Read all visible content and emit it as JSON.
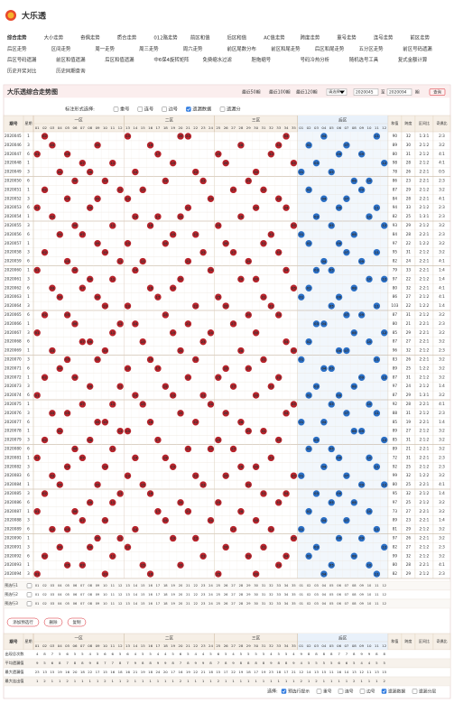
{
  "header": {
    "title": "大乐透"
  },
  "nav": [
    [
      "综合走势",
      "大小走势",
      "奇偶走势",
      "质合走势",
      "012路走势",
      "前区和值",
      "后区和值",
      "AC值走势",
      "跨度走势",
      "重号走势",
      "连号走势",
      "前区走势"
    ],
    [
      "后区走势",
      "区间走势",
      "周一走势",
      "周三走势",
      "周六走势",
      "前区尾数分布",
      "前区和尾走势",
      "后区和尾走势",
      "五分区走势",
      "前区号码遗漏"
    ],
    [
      "后区号码遗漏",
      "前区和值遗漏",
      "后区和值遗漏",
      "中6保4旋转矩阵",
      "免费缩水过滤",
      "胆拖缩号",
      "号码冷热分析",
      "随机选号工具",
      "复式金额计算"
    ],
    [
      "历史开奖对比",
      "历史同期查询"
    ]
  ],
  "panel": {
    "title": "大乐透综合走势图",
    "recent": [
      "最近50期",
      "最近100期",
      "最近120期"
    ],
    "select": "请选择",
    "from": "2020045",
    "to_label": "至",
    "to": "2020094",
    "period_label": "期",
    "query": "查询"
  },
  "options": {
    "label": "标注形式选择:",
    "items": [
      {
        "text": "重号",
        "checked": false
      },
      {
        "text": "连号",
        "checked": false
      },
      {
        "text": "边号",
        "checked": false
      },
      {
        "text": "遗漏数据",
        "checked": true
      },
      {
        "text": "遗漏分",
        "checked": false
      }
    ]
  },
  "table": {
    "columns": {
      "issue": "期号",
      "week": "星期",
      "zones": [
        "一区",
        "二区",
        "三区",
        "后区"
      ],
      "sum": "和值",
      "span": "跨度",
      "zone_ratio": "区间比",
      "odd_even": "奇偶比"
    },
    "front_numbers": [
      "01",
      "02",
      "03",
      "04",
      "05",
      "06",
      "07",
      "08",
      "09",
      "10",
      "11",
      "12",
      "13",
      "14",
      "15",
      "16",
      "17",
      "18",
      "19",
      "20",
      "21",
      "22",
      "23",
      "24",
      "25",
      "26",
      "27",
      "28",
      "29",
      "30",
      "31",
      "32",
      "33",
      "34",
      "35"
    ],
    "back_numbers": [
      "01",
      "02",
      "03",
      "04",
      "05",
      "06",
      "07",
      "08",
      "09",
      "10",
      "11",
      "12"
    ],
    "rows": [
      [
        2020045,
        1,
        [
          "02",
          "13",
          "20",
          "21",
          "34"
        ],
        [
          "04",
          "11"
        ],
        90,
        32,
        "1:3:1",
        "2:3"
      ],
      [
        2020046,
        3,
        [
          "03",
          "09",
          "16",
          "28",
          "33"
        ],
        [
          "02",
          "07"
        ],
        89,
        30,
        "2:1:2",
        "3:2"
      ],
      [
        2020047,
        6,
        [
          "01",
          "05",
          "17",
          "25",
          "32"
        ],
        [
          "06",
          "09"
        ],
        80,
        31,
        "2:1:2",
        "4:1"
      ],
      [
        2020048,
        1,
        [
          "07",
          "11",
          "19",
          "26",
          "35"
        ],
        [
          "03",
          "12"
        ],
        98,
        28,
        "2:1:2",
        "4:1"
      ],
      [
        2020049,
        3,
        [
          "04",
          "08",
          "14",
          "22",
          "30"
        ],
        [
          "01",
          "05"
        ],
        78,
        26,
        "2:2:1",
        "0:5"
      ],
      [
        2020050,
        6,
        [
          "06",
          "10",
          "18",
          "23",
          "29"
        ],
        [
          "08",
          "10"
        ],
        86,
        23,
        "2:2:1",
        "2:3"
      ],
      [
        2020051,
        1,
        [
          "02",
          "12",
          "15",
          "27",
          "31"
        ],
        [
          "02",
          "09"
        ],
        87,
        29,
        "2:1:2",
        "3:2"
      ],
      [
        2020052,
        3,
        [
          "05",
          "09",
          "13",
          "24",
          "33"
        ],
        [
          "04",
          "07"
        ],
        84,
        28,
        "2:2:1",
        "4:1"
      ],
      [
        2020053,
        6,
        [
          "01",
          "08",
          "21",
          "30",
          "34"
        ],
        [
          "06",
          "11"
        ],
        94,
        33,
        "2:1:2",
        "2:3"
      ],
      [
        2020054,
        1,
        [
          "03",
          "14",
          "17",
          "20",
          "28"
        ],
        [
          "03",
          "10"
        ],
        82,
        25,
        "1:3:1",
        "2:3"
      ],
      [
        2020055,
        3,
        [
          "06",
          "11",
          "16",
          "25",
          "35"
        ],
        [
          "05",
          "12"
        ],
        93,
        29,
        "2:1:2",
        "3:2"
      ],
      [
        2020056,
        6,
        [
          "04",
          "07",
          "19",
          "22",
          "32"
        ],
        [
          "01",
          "08"
        ],
        84,
        28,
        "2:2:1",
        "2:3"
      ],
      [
        2020057,
        1,
        [
          "09",
          "13",
          "18",
          "26",
          "31"
        ],
        [
          "02",
          "06"
        ],
        97,
        22,
        "1:2:2",
        "3:2"
      ],
      [
        2020058,
        3,
        [
          "02",
          "10",
          "23",
          "27",
          "33"
        ],
        [
          "07",
          "11"
        ],
        95,
        31,
        "2:1:2",
        "3:2"
      ],
      [
        2020059,
        6,
        [
          "05",
          "12",
          "15",
          "21",
          "29"
        ],
        [
          "04",
          "09"
        ],
        82,
        24,
        "2:2:1",
        "4:1"
      ],
      [
        2020060,
        1,
        [
          "01",
          "06",
          "14",
          "24",
          "34"
        ],
        [
          "03",
          "05"
        ],
        79,
        33,
        "2:2:1",
        "1:4"
      ],
      [
        2020061,
        3,
        [
          "08",
          "11",
          "20",
          "28",
          "30"
        ],
        [
          "10",
          "12"
        ],
        97,
        22,
        "2:1:2",
        "1:4"
      ],
      [
        2020062,
        6,
        [
          "03",
          "07",
          "16",
          "19",
          "35"
        ],
        [
          "02",
          "08"
        ],
        80,
        32,
        "2:2:1",
        "4:1"
      ],
      [
        2020063,
        1,
        [
          "04",
          "09",
          "17",
          "25",
          "31"
        ],
        [
          "01",
          "06"
        ],
        86,
        27,
        "2:1:2",
        "4:1"
      ],
      [
        2020064,
        3,
        [
          "10",
          "13",
          "22",
          "26",
          "32"
        ],
        [
          "05",
          "11"
        ],
        103,
        22,
        "1:2:2",
        "1:4"
      ],
      [
        2020065,
        6,
        [
          "02",
          "05",
          "18",
          "29",
          "33"
        ],
        [
          "07",
          "09"
        ],
        87,
        31,
        "2:1:2",
        "3:2"
      ],
      [
        2020066,
        1,
        [
          "06",
          "12",
          "14",
          "21",
          "27"
        ],
        [
          "03",
          "04"
        ],
        80,
        21,
        "2:2:1",
        "2:3"
      ],
      [
        2020067,
        3,
        [
          "01",
          "11",
          "19",
          "24",
          "30"
        ],
        [
          "08",
          "12"
        ],
        85,
        29,
        "2:2:1",
        "3:2"
      ],
      [
        2020068,
        6,
        [
          "07",
          "08",
          "15",
          "23",
          "34"
        ],
        [
          "02",
          "10"
        ],
        87,
        27,
        "2:2:1",
        "3:2"
      ],
      [
        2020069,
        1,
        [
          "03",
          "10",
          "20",
          "28",
          "35"
        ],
        [
          "06",
          "07"
        ],
        96,
        32,
        "2:1:2",
        "2:3"
      ],
      [
        2020070,
        3,
        [
          "05",
          "09",
          "16",
          "22",
          "31"
        ],
        [
          "01",
          "11"
        ],
        83,
        26,
        "2:2:1",
        "3:2"
      ],
      [
        2020071,
        6,
        [
          "04",
          "13",
          "17",
          "26",
          "29"
        ],
        [
          "04",
          "05"
        ],
        89,
        25,
        "1:2:2",
        "3:2"
      ],
      [
        2020072,
        1,
        [
          "02",
          "06",
          "21",
          "25",
          "33"
        ],
        [
          "09",
          "12"
        ],
        87,
        31,
        "2:1:2",
        "3:2"
      ],
      [
        2020073,
        3,
        [
          "08",
          "12",
          "18",
          "27",
          "32"
        ],
        [
          "03",
          "08"
        ],
        97,
        24,
        "2:1:2",
        "1:4"
      ],
      [
        2020074,
        6,
        [
          "01",
          "14",
          "19",
          "23",
          "30"
        ],
        [
          "02",
          "06"
        ],
        87,
        29,
        "1:3:1",
        "3:2"
      ],
      [
        2020075,
        1,
        [
          "07",
          "11",
          "15",
          "24",
          "35"
        ],
        [
          "05",
          "10"
        ],
        92,
        28,
        "2:2:1",
        "4:1"
      ],
      [
        2020076,
        3,
        [
          "03",
          "05",
          "20",
          "26",
          "34"
        ],
        [
          "07",
          "11"
        ],
        88,
        31,
        "2:1:2",
        "2:3"
      ],
      [
        2020077,
        6,
        [
          "09",
          "10",
          "16",
          "22",
          "28"
        ],
        [
          "01",
          "04"
        ],
        85,
        19,
        "2:2:1",
        "1:4"
      ],
      [
        2020078,
        1,
        [
          "04",
          "12",
          "13",
          "29",
          "31"
        ],
        [
          "08",
          "09"
        ],
        89,
        27,
        "2:1:2",
        "3:2"
      ],
      [
        2020079,
        3,
        [
          "02",
          "08",
          "17",
          "25",
          "33"
        ],
        [
          "03",
          "12"
        ],
        85,
        31,
        "2:1:2",
        "3:2"
      ],
      [
        2020080,
        6,
        [
          "06",
          "11",
          "21",
          "24",
          "27"
        ],
        [
          "02",
          "05"
        ],
        89,
        21,
        "2:2:1",
        "3:2"
      ],
      [
        2020081,
        1,
        [
          "01",
          "07",
          "14",
          "18",
          "32"
        ],
        [
          "06",
          "10"
        ],
        72,
        31,
        "2:2:1",
        "2:3"
      ],
      [
        2020082,
        3,
        [
          "05",
          "10",
          "19",
          "28",
          "30"
        ],
        [
          "04",
          "11"
        ],
        92,
        25,
        "2:1:2",
        "2:3"
      ],
      [
        2020083,
        6,
        [
          "03",
          "13",
          "22",
          "26",
          "35"
        ],
        [
          "01",
          "07"
        ],
        99,
        32,
        "1:2:2",
        "3:2"
      ],
      [
        2020084,
        1,
        [
          "04",
          "09",
          "15",
          "23",
          "29"
        ],
        [
          "09",
          "12"
        ],
        80,
        25,
        "2:2:1",
        "4:1"
      ],
      [
        2020085,
        3,
        [
          "02",
          "12",
          "16",
          "31",
          "34"
        ],
        [
          "03",
          "06"
        ],
        95,
        32,
        "2:1:2",
        "1:4"
      ],
      [
        2020086,
        6,
        [
          "08",
          "11",
          "20",
          "25",
          "33"
        ],
        [
          "05",
          "08"
        ],
        97,
        25,
        "2:1:2",
        "3:2"
      ],
      [
        2020087,
        1,
        [
          "01",
          "06",
          "17",
          "21",
          "28"
        ],
        [
          "02",
          "10"
        ],
        73,
        27,
        "2:2:1",
        "3:2"
      ],
      [
        2020088,
        3,
        [
          "07",
          "10",
          "18",
          "24",
          "30"
        ],
        [
          "04",
          "07"
        ],
        89,
        23,
        "2:2:1",
        "1:4"
      ],
      [
        2020089,
        6,
        [
          "03",
          "05",
          "14",
          "27",
          "32"
        ],
        [
          "01",
          "11"
        ],
        81,
        29,
        "2:1:2",
        "3:2"
      ],
      [
        2020090,
        1,
        [
          "09",
          "12",
          "19",
          "22",
          "35"
        ],
        [
          "06",
          "09"
        ],
        97,
        26,
        "2:2:1",
        "3:2"
      ],
      [
        2020091,
        3,
        [
          "04",
          "08",
          "13",
          "26",
          "31"
        ],
        [
          "03",
          "12"
        ],
        82,
        27,
        "2:1:2",
        "2:3"
      ],
      [
        2020092,
        6,
        [
          "02",
          "11",
          "23",
          "29",
          "34"
        ],
        [
          "02",
          "08"
        ],
        99,
        32,
        "2:1:2",
        "3:2"
      ],
      [
        2020093,
        1,
        [
          "05",
          "07",
          "15",
          "20",
          "33"
        ],
        [
          "05",
          "10"
        ],
        80,
        28,
        "2:2:1",
        "4:1"
      ],
      [
        2020094,
        3,
        [
          "01",
          "10",
          "16",
          "25",
          "30"
        ],
        [
          "04",
          "11"
        ],
        82,
        29,
        "2:1:2",
        "2:3"
      ]
    ]
  },
  "prediction_rows": [
    "预选行1",
    "预选行2",
    "预选行3"
  ],
  "buttons": [
    "添加预选行",
    "删除",
    "复制"
  ],
  "stats": {
    "rows": [
      {
        "label": "出现总次数",
        "values": [
          4,
          8,
          7,
          5,
          6,
          5,
          5,
          4,
          5,
          6,
          6,
          5,
          6,
          4,
          5,
          5,
          4,
          4,
          5,
          6,
          5,
          4,
          4,
          5,
          6,
          5,
          4,
          5,
          5,
          5,
          5,
          4,
          5,
          5,
          4,
          9,
          8,
          8,
          8,
          8,
          7,
          7,
          8,
          9,
          9,
          8,
          8
        ]
      },
      {
        "label": "平均遗漏值",
        "values": [
          9,
          5,
          6,
          8,
          7,
          8,
          8,
          9,
          8,
          7,
          7,
          8,
          7,
          9,
          8,
          8,
          9,
          9,
          8,
          7,
          8,
          9,
          9,
          8,
          7,
          8,
          9,
          8,
          8,
          8,
          8,
          9,
          8,
          8,
          9,
          4,
          5,
          5,
          5,
          5,
          6,
          6,
          5,
          4,
          4,
          5,
          5
        ]
      },
      {
        "label": "最大遗漏值",
        "values": [
          23,
          13,
          15,
          19,
          16,
          20,
          18,
          22,
          17,
          15,
          16,
          18,
          16,
          21,
          19,
          18,
          24,
          20,
          17,
          16,
          19,
          22,
          21,
          18,
          15,
          17,
          22,
          19,
          18,
          17,
          19,
          23,
          18,
          17,
          21,
          12,
          14,
          13,
          15,
          11,
          16,
          14,
          13,
          12,
          11,
          13,
          15
        ]
      },
      {
        "label": "最大连出值",
        "values": [
          1,
          2,
          1,
          1,
          2,
          1,
          1,
          1,
          1,
          2,
          1,
          1,
          2,
          1,
          1,
          1,
          1,
          1,
          1,
          2,
          1,
          1,
          1,
          1,
          2,
          1,
          1,
          1,
          1,
          1,
          1,
          1,
          1,
          1,
          1,
          2,
          1,
          2,
          1,
          1,
          1,
          1,
          2,
          1,
          1,
          1,
          2
        ]
      }
    ]
  },
  "footer": {
    "label": "选择:",
    "items": [
      {
        "text": "预选行提示",
        "checked": true
      },
      {
        "text": "重号",
        "checked": false
      },
      {
        "text": "连号",
        "checked": false
      },
      {
        "text": "边号",
        "checked": false
      },
      {
        "text": "遗漏数据",
        "checked": true
      },
      {
        "text": "遗漏分层",
        "checked": false
      }
    ]
  }
}
